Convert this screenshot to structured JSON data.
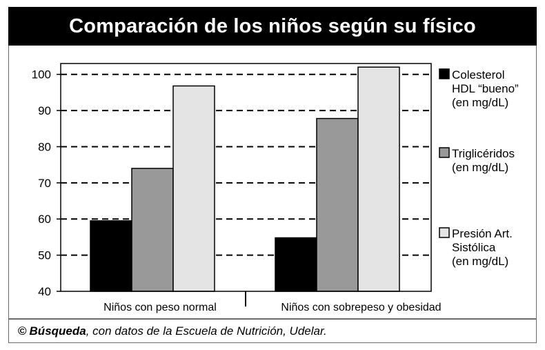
{
  "title": "Comparación de los niños según su físico",
  "footer": {
    "copyright_symbol": "©",
    "brand": "Búsqueda",
    "source_text": ", con datos de la Escuela de Nutrición, Udelar."
  },
  "chart_data": {
    "type": "bar",
    "categories": [
      "Niños con peso normal",
      "Niños con sobrepeso y obesidad"
    ],
    "series": [
      {
        "name": "Colesterol HDL “bueno” (en mg/dL)",
        "label_lines": [
          "Colesterol",
          "HDL “bueno”",
          "(en mg/dL)"
        ],
        "color": "#000000",
        "values": [
          59.5,
          54.8
        ]
      },
      {
        "name": "Triglicéridos (en mg/dL)",
        "label_lines": [
          "Triglicéridos",
          "(en mg/dL)"
        ],
        "color": "#999999",
        "values": [
          74,
          87.8
        ]
      },
      {
        "name": "Presión Art. Sistólica (en mg/dL)",
        "label_lines": [
          "Presión Art.",
          "Sistólica",
          "(en mg/dL)"
        ],
        "color": "#e4e4e4",
        "values": [
          96.8,
          102
        ]
      }
    ],
    "yticks": [
      40,
      50,
      60,
      70,
      80,
      90,
      100
    ],
    "ylim": [
      40,
      103
    ],
    "grid": true,
    "grid_style": "dashed",
    "legend_position": "right"
  }
}
